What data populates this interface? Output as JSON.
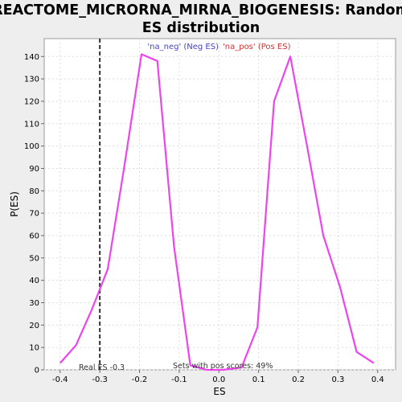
{
  "chart_data": {
    "type": "line",
    "title_lines": [
      "REACTOME_MICRORNA_MIRNA_BIOGENESIS: Random",
      "ES distribution"
    ],
    "xlabel": "ES",
    "ylabel": "P(ES)",
    "xlim": [
      -0.44,
      0.445
    ],
    "ylim": [
      0,
      148
    ],
    "xticks": [
      -0.4,
      -0.3,
      -0.2,
      -0.1,
      0.0,
      0.1,
      0.2,
      0.3,
      0.4
    ],
    "xtick_labels": [
      "-0.4",
      "-0.3",
      "-0.2",
      "-0.1",
      "0.0",
      "0.1",
      "0.2",
      "0.3",
      "0.4"
    ],
    "yticks": [
      0,
      10,
      20,
      30,
      40,
      50,
      60,
      70,
      80,
      90,
      100,
      110,
      120,
      130,
      140
    ],
    "ytick_labels": [
      "0",
      "10",
      "20",
      "30",
      "40",
      "50",
      "60",
      "70",
      "80",
      "90",
      "100",
      "110",
      "120",
      "130",
      "140"
    ],
    "grid": true,
    "line_color": "#ee44ee",
    "series": [
      {
        "x": [
          -0.4,
          -0.36,
          -0.32,
          -0.28,
          -0.24,
          -0.195,
          -0.155,
          -0.113,
          -0.072,
          -0.031,
          0.01,
          0.057,
          0.097,
          0.139,
          0.18,
          0.222,
          0.263,
          0.305,
          0.347,
          0.39
        ],
        "values": [
          3,
          11,
          27,
          45,
          89,
          141,
          138,
          55,
          2,
          0,
          0,
          1,
          19,
          120,
          140,
          100,
          60,
          37,
          8,
          3
        ]
      }
    ],
    "legend": {
      "placement": "top-center",
      "entries": [
        {
          "label": "'na_neg' (Neg ES)",
          "color": "#4444cc"
        },
        {
          "label": "'na_pos' (Pos ES)",
          "color": "#cc3333"
        }
      ]
    },
    "real_es": {
      "x": -0.3,
      "label": "Real ES -0.3"
    },
    "annotation": "Sets with pos scores: 49%"
  }
}
